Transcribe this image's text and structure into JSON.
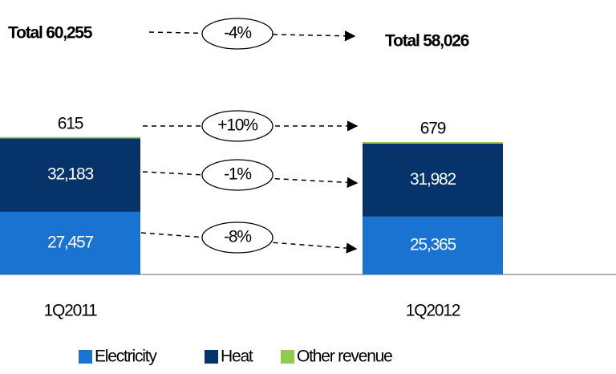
{
  "chart_data": {
    "type": "stacked-bar",
    "categories": [
      "1Q2011",
      "1Q2012"
    ],
    "series": [
      {
        "name": "Electricity",
        "color": "#1a73d0",
        "values": [
          27457,
          25365
        ],
        "value_labels": [
          "27,457",
          "25,365"
        ]
      },
      {
        "name": "Heat",
        "color": "#06346a",
        "values": [
          32183,
          31982
        ],
        "value_labels": [
          "32,183",
          "31,982"
        ]
      },
      {
        "name": "Other revenue",
        "color": "#92c94f",
        "values": [
          615,
          679
        ]
      }
    ],
    "ylim": [
      0,
      70000
    ],
    "total_labels": [
      "Total 60,255",
      "Total 58,026"
    ],
    "annotations": [
      "-4%",
      "+10%",
      "-1%",
      "-8%"
    ]
  }
}
